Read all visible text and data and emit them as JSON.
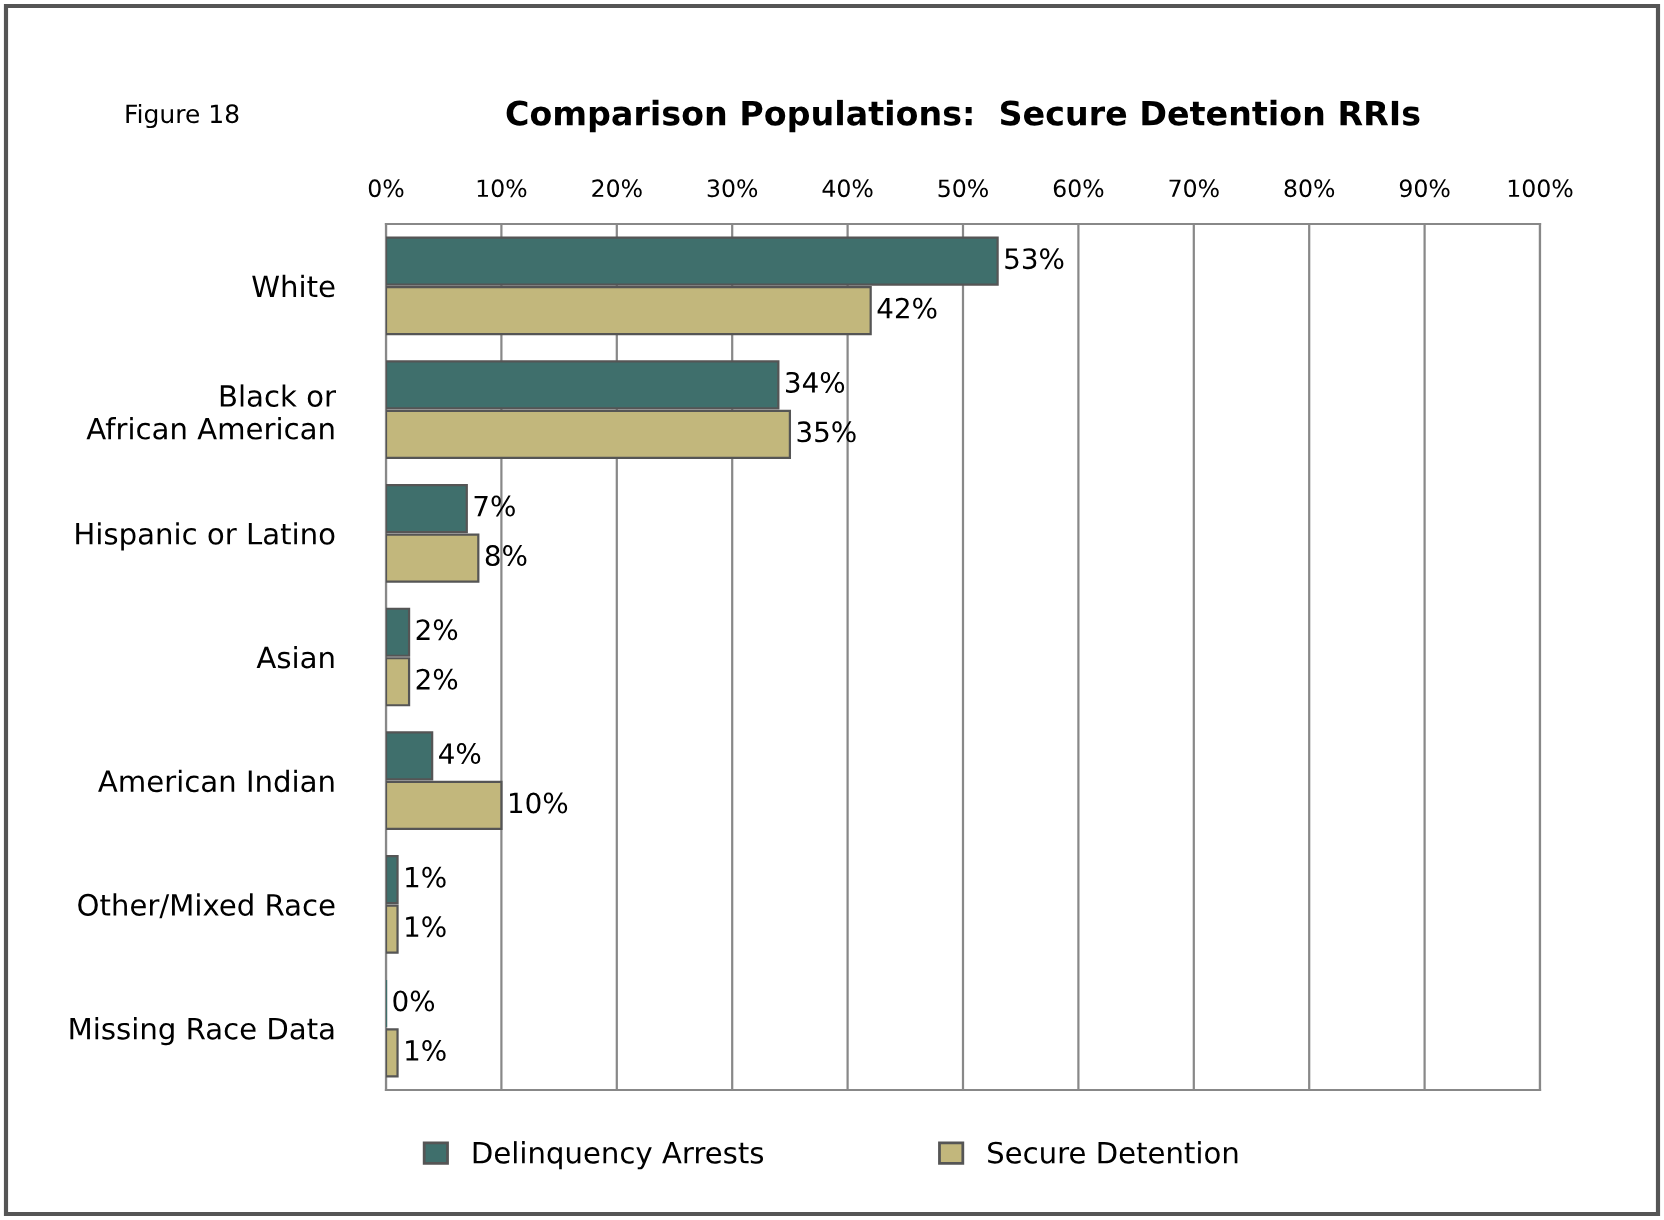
{
  "chart_data": {
    "type": "bar",
    "orientation": "horizontal",
    "title": "Comparison Populations:  Secure Detention RRIs",
    "annotations": [
      "Figure 18"
    ],
    "categories": [
      "White",
      "Black or\nAfrican American",
      "Hispanic or Latino",
      "Asian",
      "American Indian",
      "Other/Mixed Race",
      "Missing Race Data"
    ],
    "series": [
      {
        "name": "Delinquency Arrests",
        "color": "#3f6f6c",
        "values": [
          53,
          34,
          7,
          2,
          4,
          1,
          0
        ],
        "value_labels": [
          "53%",
          "34%",
          "7%",
          "2%",
          "4%",
          "1%",
          "0%"
        ]
      },
      {
        "name": "Secure Detention",
        "color": "#c2b77c",
        "values": [
          42,
          35,
          8,
          2,
          10,
          1,
          1
        ],
        "value_labels": [
          "42%",
          "35%",
          "8%",
          "2%",
          "10%",
          "1%",
          "1%"
        ]
      }
    ],
    "xlim": [
      0,
      100
    ],
    "xticks": [
      {
        "value": 0,
        "label": "0%"
      },
      {
        "value": 10,
        "label": "10%"
      },
      {
        "value": 20,
        "label": "20%"
      },
      {
        "value": 30,
        "label": "30%"
      },
      {
        "value": 40,
        "label": "40%"
      },
      {
        "value": 50,
        "label": "50%"
      },
      {
        "value": 60,
        "label": "60%"
      },
      {
        "value": 70,
        "label": "70%"
      },
      {
        "value": 80,
        "label": "80%"
      },
      {
        "value": 90,
        "label": "90%"
      },
      {
        "value": 100,
        "label": "100%"
      }
    ],
    "grid": "x",
    "legend": "bottom"
  }
}
